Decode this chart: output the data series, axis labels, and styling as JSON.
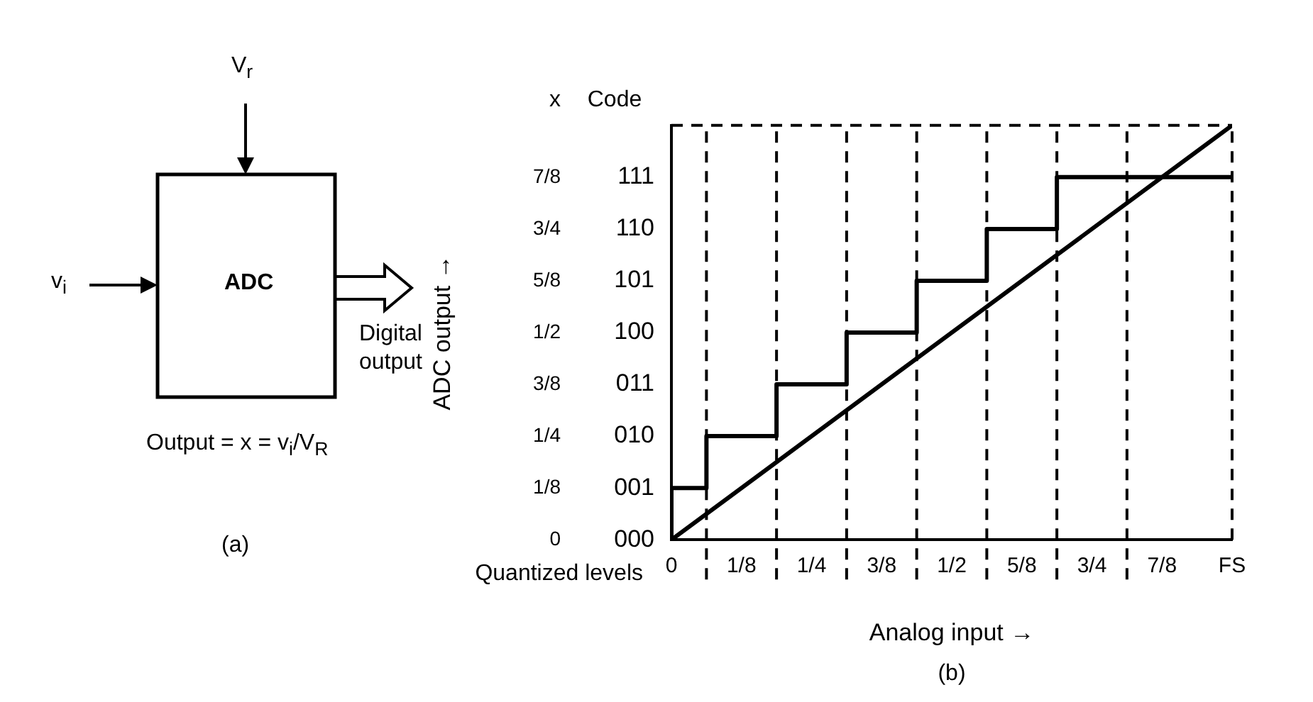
{
  "chart_data": {
    "type": "step",
    "ylabel": "ADC output →",
    "xlabel": "Analog input →",
    "x": [
      0,
      0.0625,
      0.1875,
      0.3125,
      0.4375,
      0.5625,
      0.6875,
      0.8125,
      1
    ],
    "series": [
      {
        "type": "step",
        "color": "#000000",
        "line_style": "solid",
        "values": [
          0,
          0.125,
          0.25,
          0.375,
          0.5,
          0.625,
          0.75,
          0.875,
          0.875
        ]
      },
      {
        "type": "line",
        "color": "#000000",
        "line_style": "solid",
        "x": [
          0,
          1
        ],
        "values": [
          0,
          1
        ]
      }
    ],
    "xlim": [
      0,
      1
    ],
    "ylim": [
      0,
      1
    ],
    "xticks": [
      0,
      {
        "value": 0.125,
        "label": "1/8"
      },
      {
        "value": 0.25,
        "label": "1/4"
      },
      {
        "value": 0.375,
        "label": "3/8"
      },
      {
        "value": 0.5,
        "label": "1/2"
      },
      {
        "value": 0.625,
        "label": "5/8"
      },
      {
        "value": 0.75,
        "label": "3/4"
      },
      {
        "value": 0.875,
        "label": "7/8"
      },
      {
        "value": 1,
        "label": "FS"
      }
    ],
    "yticks": [
      0,
      {
        "value": 0.125,
        "label": "1/8"
      },
      {
        "value": 0.25,
        "label": "1/4"
      },
      {
        "value": 0.375,
        "label": "3/8"
      },
      {
        "value": 0.5,
        "label": "1/2"
      },
      {
        "value": 0.625,
        "label": "5/8"
      },
      {
        "value": 0.75,
        "label": "3/4"
      },
      {
        "value": 0.875,
        "label": "7/8"
      }
    ],
    "ref_lines": [
      {
        "axis": "x",
        "value": 0.0625,
        "line_style": "dashed",
        "color": "#000000"
      },
      {
        "axis": "x",
        "value": 0.1875,
        "line_style": "dashed",
        "color": "#000000"
      },
      {
        "axis": "x",
        "value": 0.3125,
        "line_style": "dashed",
        "color": "#000000"
      },
      {
        "axis": "x",
        "value": 0.4375,
        "line_style": "dashed",
        "color": "#000000"
      },
      {
        "axis": "x",
        "value": 0.5625,
        "line_style": "dashed",
        "color": "#000000"
      },
      {
        "axis": "x",
        "value": 0.6875,
        "line_style": "dashed",
        "color": "#000000"
      },
      {
        "axis": "x",
        "value": 0.8125,
        "line_style": "dashed",
        "color": "#000000"
      },
      {
        "axis": "x",
        "value": 1,
        "line_style": "dashed",
        "color": "#000000"
      },
      {
        "axis": "y",
        "value": 1,
        "line_style": "dashed",
        "color": "#000000"
      }
    ],
    "annotations": [
      "x",
      "Quantized levels",
      "(b)",
      "V$_{r}$",
      "v$_{i}$",
      "ADC",
      "Digital output",
      "Output = x = v$_{i}$/V$_{R}$",
      "(a)",
      "Code",
      "000",
      "001",
      "010",
      "011",
      "100",
      "101",
      "110",
      "111"
    ],
    "grid": false,
    "legend": false,
    "marker": "none"
  }
}
